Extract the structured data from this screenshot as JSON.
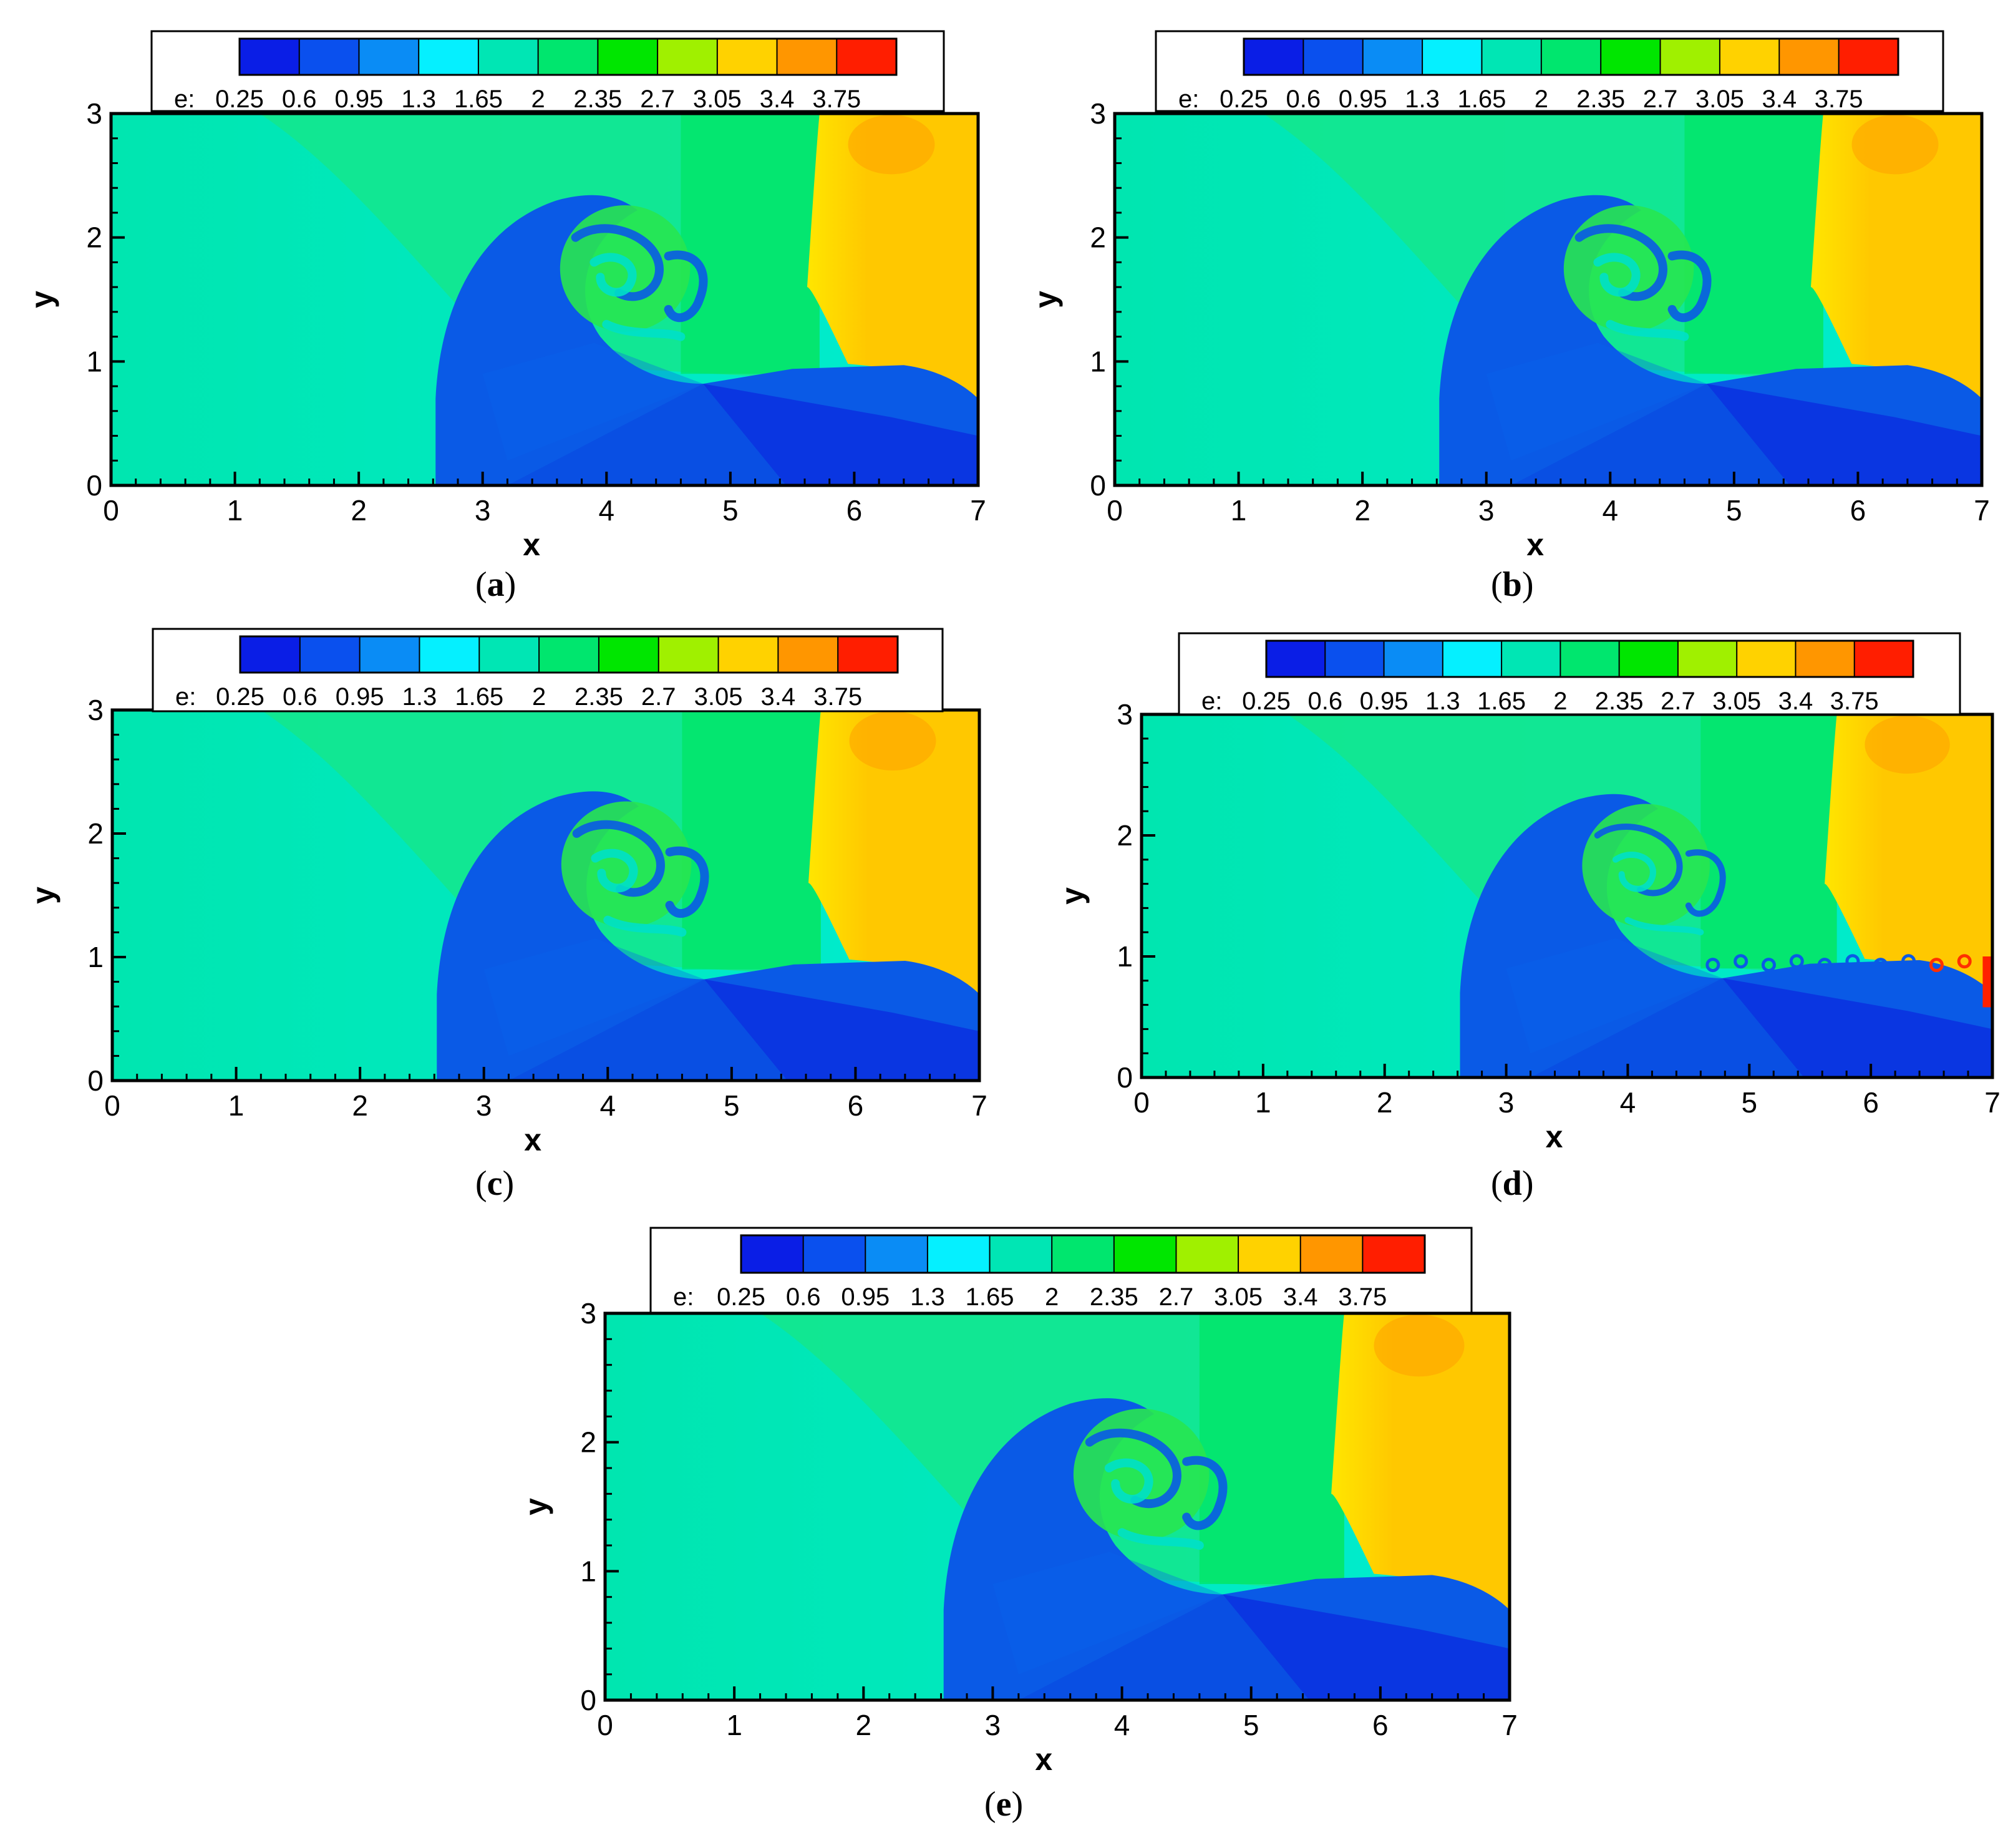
{
  "figure": {
    "panels": [
      {
        "id": "a",
        "caption_label": "a"
      },
      {
        "id": "b",
        "caption_label": "b"
      },
      {
        "id": "c",
        "caption_label": "c"
      },
      {
        "id": "d",
        "caption_label": "d"
      },
      {
        "id": "e",
        "caption_label": "e"
      }
    ]
  },
  "colorbar": {
    "variable": "e:",
    "tick_labels": [
      "0.25",
      "0.6",
      "0.95",
      "1.3",
      "1.65",
      "2",
      "2.35",
      "2.7",
      "3.05",
      "3.4",
      "3.75"
    ],
    "colors": [
      "#0a1ee6",
      "#0a50ee",
      "#0a8cf5",
      "#05f0ff",
      "#00e6b4",
      "#00e66e",
      "#00e600",
      "#a0f000",
      "#ffd200",
      "#ff9600",
      "#ff1e00"
    ]
  },
  "chart_data": [
    {
      "type": "heatmap",
      "panel": "a",
      "xlabel": "x",
      "ylabel": "y",
      "x_ticks": [
        "0",
        "1",
        "2",
        "3",
        "4",
        "5",
        "6",
        "7"
      ],
      "y_ticks": [
        "0",
        "1",
        "2",
        "3"
      ],
      "xlim": [
        0,
        7
      ],
      "ylim": [
        0,
        3
      ],
      "colorbar_variable": "e",
      "colorbar_ticks": [
        0.25,
        0.6,
        0.95,
        1.3,
        1.65,
        2,
        2.35,
        2.7,
        3.05,
        3.4,
        3.75
      ],
      "regions": [
        {
          "name": "left ambient",
          "approx_e": 1.4
        },
        {
          "name": "upper green zone",
          "approx_e": 2.1
        },
        {
          "name": "right shocked region",
          "approx_e": 3.3
        },
        {
          "name": "blue bubble",
          "approx_e": 0.5
        },
        {
          "name": "lower right jet",
          "approx_e": 0.4
        }
      ]
    },
    {
      "type": "heatmap",
      "panel": "b",
      "xlabel": "x",
      "ylabel": "y",
      "x_ticks": [
        "0",
        "1",
        "2",
        "3",
        "4",
        "5",
        "6",
        "7"
      ],
      "y_ticks": [
        "0",
        "1",
        "2",
        "3"
      ],
      "xlim": [
        0,
        7
      ],
      "ylim": [
        0,
        3
      ]
    },
    {
      "type": "heatmap",
      "panel": "c",
      "xlabel": "x",
      "ylabel": "y",
      "x_ticks": [
        "0",
        "1",
        "2",
        "3",
        "4",
        "5",
        "6",
        "7"
      ],
      "y_ticks": [
        "0",
        "1",
        "2",
        "3"
      ],
      "xlim": [
        0,
        7
      ],
      "ylim": [
        0,
        3
      ]
    },
    {
      "type": "heatmap",
      "panel": "d",
      "xlabel": "x",
      "ylabel": "y",
      "x_ticks": [
        "0",
        "1",
        "2",
        "3",
        "4",
        "5",
        "6",
        "7"
      ],
      "y_ticks": [
        "0",
        "1",
        "2",
        "3"
      ],
      "xlim": [
        0,
        7
      ],
      "ylim": [
        0,
        3
      ]
    },
    {
      "type": "heatmap",
      "panel": "e",
      "xlabel": "x",
      "ylabel": "y",
      "x_ticks": [
        "0",
        "1",
        "2",
        "3",
        "4",
        "5",
        "6",
        "7"
      ],
      "y_ticks": [
        "0",
        "1",
        "2",
        "3"
      ],
      "xlim": [
        0,
        7
      ],
      "ylim": [
        0,
        3
      ]
    }
  ]
}
